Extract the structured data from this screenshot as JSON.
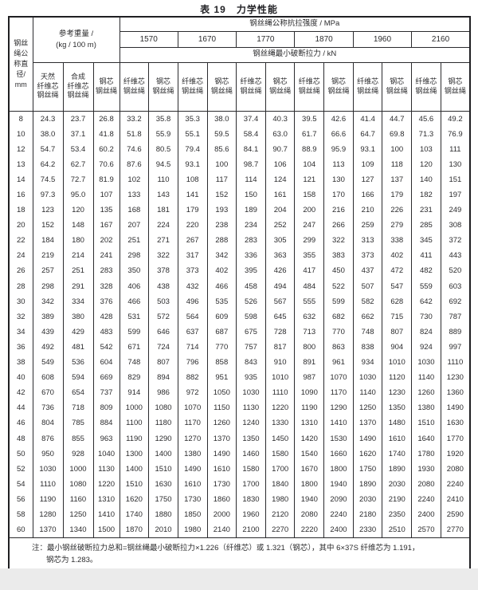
{
  "title": "表 19　力学性能",
  "table": {
    "diameter_header": "钢丝\n绳公\n称直\n径/\nmm",
    "weight_header": "参考重量 /\n(kg / 100 m)",
    "strength_header": "钢丝绳公称抗拉强度 / MPa",
    "breaking_header": "钢丝绳最小破断拉力 / kN",
    "strengths": [
      "1570",
      "1670",
      "1770",
      "1870",
      "1960",
      "2160"
    ],
    "weight_sub": [
      "天然\n纤维芯\n钢丝绳",
      "合成\n纤维芯\n钢丝绳",
      "钢芯\n钢丝绳"
    ],
    "sub_fiber": "纤维芯\n钢丝绳",
    "sub_steel": "钢芯\n钢丝绳",
    "rows": [
      [
        "8",
        "24.3",
        "23.7",
        "26.8",
        "33.2",
        "35.8",
        "35.3",
        "38.0",
        "37.4",
        "40.3",
        "39.5",
        "42.6",
        "41.4",
        "44.7",
        "45.6",
        "49.2"
      ],
      [
        "10",
        "38.0",
        "37.1",
        "41.8",
        "51.8",
        "55.9",
        "55.1",
        "59.5",
        "58.4",
        "63.0",
        "61.7",
        "66.6",
        "64.7",
        "69.8",
        "71.3",
        "76.9"
      ],
      [
        "12",
        "54.7",
        "53.4",
        "60.2",
        "74.6",
        "80.5",
        "79.4",
        "85.6",
        "84.1",
        "90.7",
        "88.9",
        "95.9",
        "93.1",
        "100",
        "103",
        "111"
      ],
      [
        "13",
        "64.2",
        "62.7",
        "70.6",
        "87.6",
        "94.5",
        "93.1",
        "100",
        "98.7",
        "106",
        "104",
        "113",
        "109",
        "118",
        "120",
        "130"
      ],
      [
        "14",
        "74.5",
        "72.7",
        "81.9",
        "102",
        "110",
        "108",
        "117",
        "114",
        "124",
        "121",
        "130",
        "127",
        "137",
        "140",
        "151"
      ],
      [
        "16",
        "97.3",
        "95.0",
        "107",
        "133",
        "143",
        "141",
        "152",
        "150",
        "161",
        "158",
        "170",
        "166",
        "179",
        "182",
        "197"
      ],
      [
        "18",
        "123",
        "120",
        "135",
        "168",
        "181",
        "179",
        "193",
        "189",
        "204",
        "200",
        "216",
        "210",
        "226",
        "231",
        "249"
      ],
      [
        "20",
        "152",
        "148",
        "167",
        "207",
        "224",
        "220",
        "238",
        "234",
        "252",
        "247",
        "266",
        "259",
        "279",
        "285",
        "308"
      ],
      [
        "22",
        "184",
        "180",
        "202",
        "251",
        "271",
        "267",
        "288",
        "283",
        "305",
        "299",
        "322",
        "313",
        "338",
        "345",
        "372"
      ],
      [
        "24",
        "219",
        "214",
        "241",
        "298",
        "322",
        "317",
        "342",
        "336",
        "363",
        "355",
        "383",
        "373",
        "402",
        "411",
        "443"
      ],
      [
        "26",
        "257",
        "251",
        "283",
        "350",
        "378",
        "373",
        "402",
        "395",
        "426",
        "417",
        "450",
        "437",
        "472",
        "482",
        "520"
      ],
      [
        "28",
        "298",
        "291",
        "328",
        "406",
        "438",
        "432",
        "466",
        "458",
        "494",
        "484",
        "522",
        "507",
        "547",
        "559",
        "603"
      ],
      [
        "30",
        "342",
        "334",
        "376",
        "466",
        "503",
        "496",
        "535",
        "526",
        "567",
        "555",
        "599",
        "582",
        "628",
        "642",
        "692"
      ],
      [
        "32",
        "389",
        "380",
        "428",
        "531",
        "572",
        "564",
        "609",
        "598",
        "645",
        "632",
        "682",
        "662",
        "715",
        "730",
        "787"
      ],
      [
        "34",
        "439",
        "429",
        "483",
        "599",
        "646",
        "637",
        "687",
        "675",
        "728",
        "713",
        "770",
        "748",
        "807",
        "824",
        "889"
      ],
      [
        "36",
        "492",
        "481",
        "542",
        "671",
        "724",
        "714",
        "770",
        "757",
        "817",
        "800",
        "863",
        "838",
        "904",
        "924",
        "997"
      ],
      [
        "38",
        "549",
        "536",
        "604",
        "748",
        "807",
        "796",
        "858",
        "843",
        "910",
        "891",
        "961",
        "934",
        "1010",
        "1030",
        "1110"
      ],
      [
        "40",
        "608",
        "594",
        "669",
        "829",
        "894",
        "882",
        "951",
        "935",
        "1010",
        "987",
        "1070",
        "1030",
        "1120",
        "1140",
        "1230"
      ],
      [
        "42",
        "670",
        "654",
        "737",
        "914",
        "986",
        "972",
        "1050",
        "1030",
        "1110",
        "1090",
        "1170",
        "1140",
        "1230",
        "1260",
        "1360"
      ],
      [
        "44",
        "736",
        "718",
        "809",
        "1000",
        "1080",
        "1070",
        "1150",
        "1130",
        "1220",
        "1190",
        "1290",
        "1250",
        "1350",
        "1380",
        "1490"
      ],
      [
        "46",
        "804",
        "785",
        "884",
        "1100",
        "1180",
        "1170",
        "1260",
        "1240",
        "1330",
        "1310",
        "1410",
        "1370",
        "1480",
        "1510",
        "1630"
      ],
      [
        "48",
        "876",
        "855",
        "963",
        "1190",
        "1290",
        "1270",
        "1370",
        "1350",
        "1450",
        "1420",
        "1530",
        "1490",
        "1610",
        "1640",
        "1770"
      ],
      [
        "50",
        "950",
        "928",
        "1040",
        "1300",
        "1400",
        "1380",
        "1490",
        "1460",
        "1580",
        "1540",
        "1660",
        "1620",
        "1740",
        "1780",
        "1920"
      ],
      [
        "52",
        "1030",
        "1000",
        "1130",
        "1400",
        "1510",
        "1490",
        "1610",
        "1580",
        "1700",
        "1670",
        "1800",
        "1750",
        "1890",
        "1930",
        "2080"
      ],
      [
        "54",
        "1110",
        "1080",
        "1220",
        "1510",
        "1630",
        "1610",
        "1730",
        "1700",
        "1840",
        "1800",
        "1940",
        "1890",
        "2030",
        "2080",
        "2240"
      ],
      [
        "56",
        "1190",
        "1160",
        "1310",
        "1620",
        "1750",
        "1730",
        "1860",
        "1830",
        "1980",
        "1940",
        "2090",
        "2030",
        "2190",
        "2240",
        "2410"
      ],
      [
        "58",
        "1280",
        "1250",
        "1410",
        "1740",
        "1880",
        "1850",
        "2000",
        "1960",
        "2120",
        "2080",
        "2240",
        "2180",
        "2350",
        "2400",
        "2590"
      ],
      [
        "60",
        "1370",
        "1340",
        "1500",
        "1870",
        "2010",
        "1980",
        "2140",
        "2100",
        "2270",
        "2220",
        "2400",
        "2330",
        "2510",
        "2570",
        "2770"
      ]
    ]
  },
  "note": {
    "line1": "注：最小钢丝破断拉力总和=钢丝绳最小破断拉力×1.226（纤维芯）或 1.321（钢芯），其中 6×37S 纤维芯为 1.191，",
    "line2": "钢芯为 1.283。"
  }
}
